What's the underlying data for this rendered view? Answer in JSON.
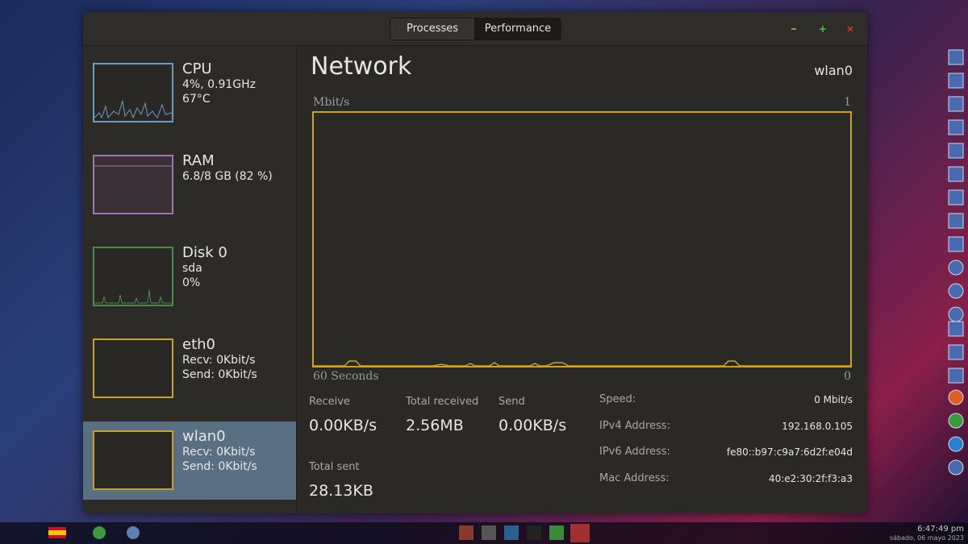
{
  "tabs": [
    "Processes",
    "Performance"
  ],
  "sidebar": [
    {
      "name": "CPU",
      "lines": [
        "4%, 0.91GHz",
        "67°C"
      ]
    },
    {
      "name": "RAM",
      "lines": [
        "6.8/8 GB (82 %)"
      ]
    },
    {
      "name": "Disk 0",
      "lines": [
        "sda",
        "0%"
      ]
    },
    {
      "name": "eth0",
      "lines": [
        "Recv: 0Kbit/s",
        "Send: 0Kbit/s"
      ]
    },
    {
      "name": "wlan0",
      "lines": [
        "Recv: 0Kbit/s",
        "Send: 0Kbit/s"
      ]
    }
  ],
  "panel": {
    "title": "Network",
    "device": "wlan0",
    "graph": {
      "y_label": "Mbit/s",
      "y_max_label": "1",
      "x_label": "60 Seconds",
      "x_min_label": "0"
    },
    "stats": [
      {
        "label": "Receive",
        "value": "0.00KB/s"
      },
      {
        "label": "Total received",
        "value": "2.56MB"
      },
      {
        "label": "Send",
        "value": "0.00KB/s"
      },
      {
        "label": "Total sent",
        "value": "28.13KB"
      }
    ],
    "details": [
      {
        "label": "Speed:",
        "value": "0 Mbit/s"
      },
      {
        "label": "IPv4 Address:",
        "value": "192.168.0.105"
      },
      {
        "label": "IPv6 Address:",
        "value": "fe80::b97:c9a7:6d2f:e04d"
      },
      {
        "label": "Mac Address:",
        "value": "40:e2:30:2f:f3:a3"
      }
    ]
  },
  "taskbar": {
    "time": "6:47:49 pm",
    "date": "sábado, 06 mayo 2023"
  }
}
